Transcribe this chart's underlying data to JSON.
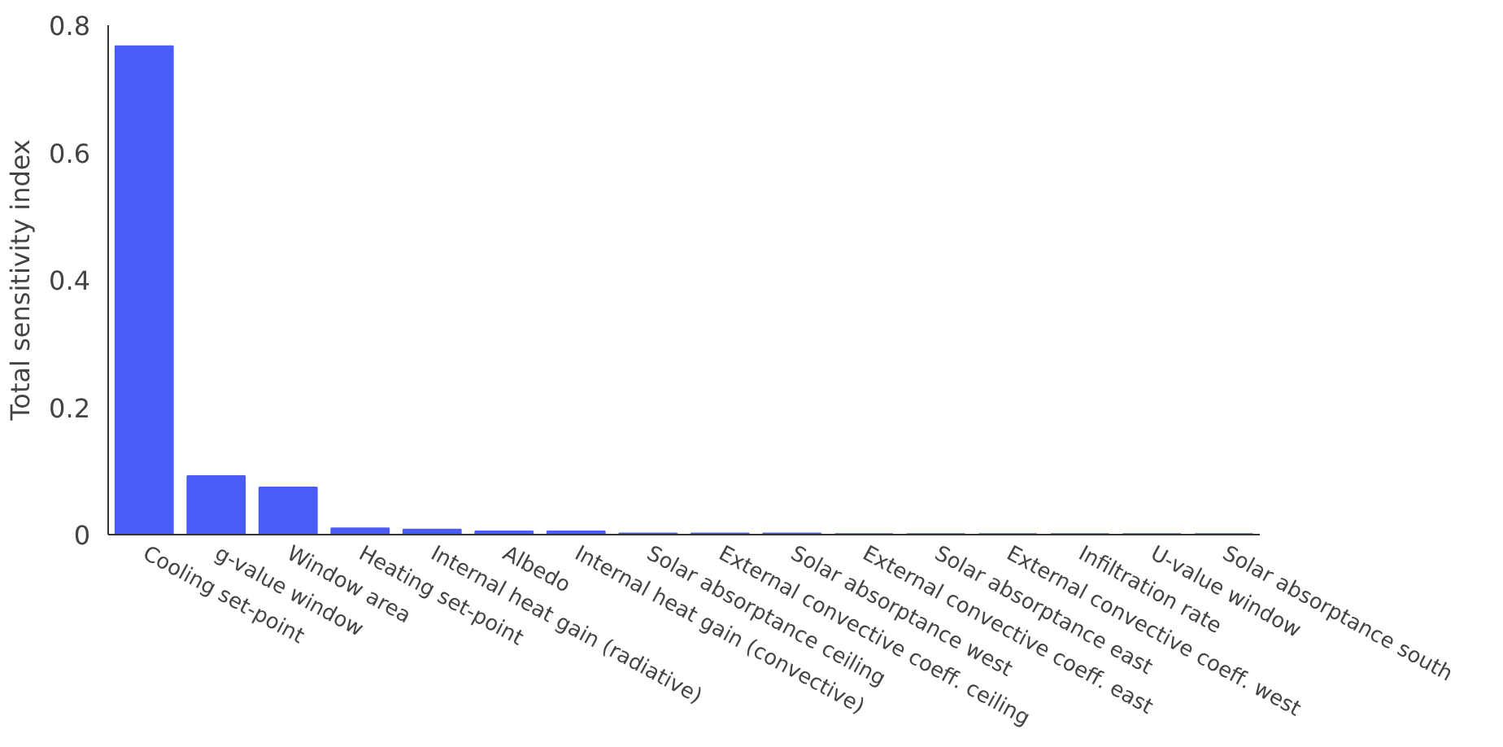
{
  "chart_data": {
    "type": "bar",
    "ylabel": "Total sensitivity index",
    "categories": [
      "Cooling set-point",
      "g-value window",
      "Window area",
      "Heating set-point",
      "Internal heat gain (radiative)",
      "Albedo",
      "Internal heat gain (convective)",
      "Solar absorptance ceiling",
      "External convective coeff. ceiling",
      "Solar absorptance west",
      "External convective coeff. east",
      "Solar absorptance east",
      "External convective coeff. west",
      "Infiltration rate",
      "U-value window",
      "Solar absorptance south"
    ],
    "values": [
      0.767,
      0.092,
      0.074,
      0.01,
      0.008,
      0.005,
      0.005,
      0.002,
      0.002,
      0.002,
      0.001,
      0.001,
      0.001,
      0.001,
      0.001,
      0.001
    ],
    "color": "#4a5cf7",
    "ylim": [
      0,
      0.8
    ],
    "yticks": [
      {
        "value": 0,
        "label": "0"
      },
      0.2,
      0.4,
      0.6,
      0.8
    ],
    "grid": false
  }
}
